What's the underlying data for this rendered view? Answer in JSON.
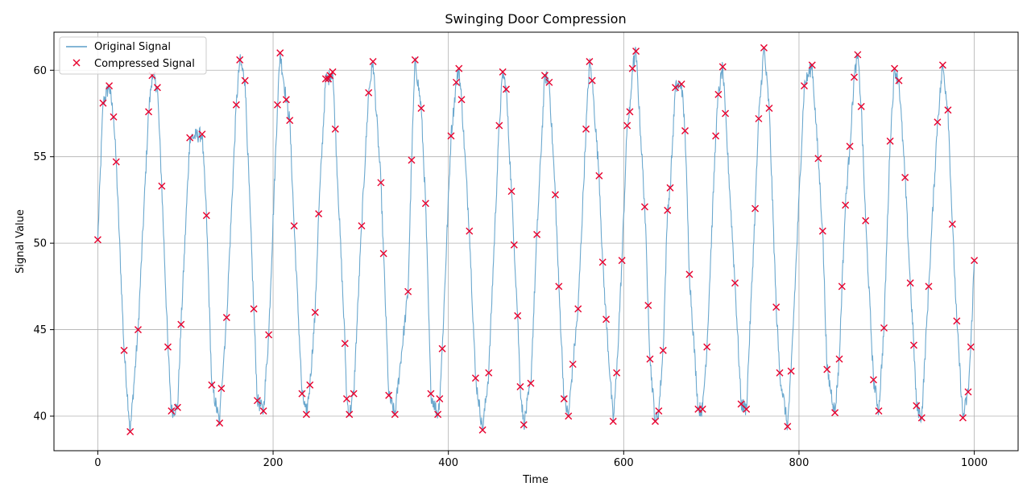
{
  "colors": {
    "original": "#5b9ec9",
    "compressed": "#e8002d",
    "grid": "#b0b0b0",
    "axis": "#000000"
  },
  "chart_data": {
    "type": "line",
    "title": "Swinging Door Compression",
    "xlabel": "Time",
    "ylabel": "Signal Value",
    "xlim": [
      -50,
      1050
    ],
    "ylim": [
      38,
      62.2
    ],
    "xticks": [
      0,
      200,
      400,
      600,
      800,
      1000
    ],
    "xtick_labels": [
      "0",
      "200",
      "400",
      "600",
      "800",
      "1000"
    ],
    "yticks": [
      40,
      45,
      50,
      55,
      60
    ],
    "ytick_labels": [
      "40",
      "45",
      "50",
      "55",
      "60"
    ],
    "grid": true,
    "legend_position": "upper-left",
    "series": [
      {
        "name": "Original Signal",
        "style": "line",
        "description_params": {
          "mean": 50,
          "amplitude": 10.2,
          "period": 50.5,
          "noise": 0.45
        }
      },
      {
        "name": "Compressed Signal",
        "style": "marker-x",
        "points": [
          [
            0,
            50.2
          ],
          [
            6,
            58.1
          ],
          [
            13,
            59.1
          ],
          [
            18,
            57.3
          ],
          [
            21,
            54.7
          ],
          [
            30,
            43.8
          ],
          [
            37,
            39.1
          ],
          [
            46,
            45.0
          ],
          [
            58,
            57.6
          ],
          [
            62,
            59.7
          ],
          [
            68,
            59.0
          ],
          [
            73,
            53.3
          ],
          [
            80,
            44.0
          ],
          [
            84,
            40.3
          ],
          [
            91,
            40.5
          ],
          [
            95,
            45.3
          ],
          [
            105,
            56.1
          ],
          [
            119,
            56.3
          ],
          [
            124,
            51.6
          ],
          [
            130,
            41.8
          ],
          [
            139,
            39.6
          ],
          [
            141,
            41.6
          ],
          [
            147,
            45.7
          ],
          [
            158,
            58.0
          ],
          [
            162,
            60.6
          ],
          [
            168,
            59.4
          ],
          [
            178,
            46.2
          ],
          [
            182,
            40.9
          ],
          [
            189,
            40.3
          ],
          [
            195,
            44.7
          ],
          [
            205,
            58.0
          ],
          [
            208,
            61.0
          ],
          [
            215,
            58.3
          ],
          [
            219,
            57.1
          ],
          [
            224,
            51.0
          ],
          [
            233,
            41.3
          ],
          [
            238,
            40.1
          ],
          [
            242,
            41.8
          ],
          [
            248,
            46.0
          ],
          [
            252,
            51.7
          ],
          [
            260,
            59.5
          ],
          [
            263,
            59.5
          ],
          [
            265,
            59.7
          ],
          [
            268,
            59.9
          ],
          [
            271,
            56.6
          ],
          [
            282,
            44.2
          ],
          [
            284,
            41.0
          ],
          [
            287,
            40.1
          ],
          [
            292,
            41.3
          ],
          [
            301,
            51.0
          ],
          [
            309,
            58.7
          ],
          [
            314,
            60.5
          ],
          [
            323,
            53.5
          ],
          [
            326,
            49.4
          ],
          [
            332,
            41.2
          ],
          [
            339,
            40.1
          ],
          [
            354,
            47.2
          ],
          [
            358,
            54.8
          ],
          [
            362,
            60.6
          ],
          [
            369,
            57.8
          ],
          [
            374,
            52.3
          ],
          [
            380,
            41.3
          ],
          [
            388,
            40.1
          ],
          [
            390,
            41.0
          ],
          [
            393,
            43.9
          ],
          [
            403,
            56.2
          ],
          [
            409,
            59.3
          ],
          [
            412,
            60.1
          ],
          [
            415,
            58.3
          ],
          [
            424,
            50.7
          ],
          [
            431,
            42.2
          ],
          [
            439,
            39.2
          ],
          [
            446,
            42.5
          ],
          [
            458,
            56.8
          ],
          [
            462,
            59.9
          ],
          [
            466,
            58.9
          ],
          [
            472,
            53.0
          ],
          [
            475,
            49.9
          ],
          [
            479,
            45.8
          ],
          [
            482,
            41.7
          ],
          [
            486,
            39.5
          ],
          [
            494,
            41.9
          ],
          [
            501,
            50.5
          ],
          [
            510,
            59.7
          ],
          [
            515,
            59.3
          ],
          [
            522,
            52.8
          ],
          [
            526,
            47.5
          ],
          [
            532,
            41.0
          ],
          [
            537,
            40.0
          ],
          [
            542,
            43.0
          ],
          [
            548,
            46.2
          ],
          [
            557,
            56.6
          ],
          [
            561,
            60.5
          ],
          [
            564,
            59.4
          ],
          [
            572,
            53.9
          ],
          [
            576,
            48.9
          ],
          [
            580,
            45.6
          ],
          [
            588,
            39.7
          ],
          [
            592,
            42.5
          ],
          [
            598,
            49.0
          ],
          [
            604,
            56.8
          ],
          [
            607,
            57.6
          ],
          [
            610,
            60.1
          ],
          [
            614,
            61.1
          ],
          [
            624,
            52.1
          ],
          [
            628,
            46.4
          ],
          [
            630,
            43.3
          ],
          [
            636,
            39.7
          ],
          [
            640,
            40.3
          ],
          [
            645,
            43.8
          ],
          [
            650,
            51.9
          ],
          [
            653,
            53.2
          ],
          [
            659,
            59.0
          ],
          [
            666,
            59.2
          ],
          [
            670,
            56.5
          ],
          [
            675,
            48.2
          ],
          [
            685,
            40.4
          ],
          [
            690,
            40.4
          ],
          [
            695,
            44.0
          ],
          [
            705,
            56.2
          ],
          [
            708,
            58.6
          ],
          [
            713,
            60.2
          ],
          [
            716,
            57.5
          ],
          [
            727,
            47.7
          ],
          [
            734,
            40.7
          ],
          [
            740,
            40.4
          ],
          [
            750,
            52.0
          ],
          [
            754,
            57.2
          ],
          [
            760,
            61.3
          ],
          [
            766,
            57.8
          ],
          [
            774,
            46.3
          ],
          [
            778,
            42.5
          ],
          [
            787,
            39.4
          ],
          [
            791,
            42.6
          ],
          [
            806,
            59.1
          ],
          [
            815,
            60.3
          ],
          [
            822,
            54.9
          ],
          [
            827,
            50.7
          ],
          [
            832,
            42.7
          ],
          [
            841,
            40.2
          ],
          [
            846,
            43.3
          ],
          [
            849,
            47.5
          ],
          [
            853,
            52.2
          ],
          [
            858,
            55.6
          ],
          [
            863,
            59.6
          ],
          [
            867,
            60.9
          ],
          [
            871,
            57.9
          ],
          [
            876,
            51.3
          ],
          [
            885,
            42.1
          ],
          [
            891,
            40.3
          ],
          [
            897,
            45.1
          ],
          [
            904,
            55.9
          ],
          [
            909,
            60.1
          ],
          [
            914,
            59.4
          ],
          [
            921,
            53.8
          ],
          [
            927,
            47.7
          ],
          [
            931,
            44.1
          ],
          [
            934,
            40.6
          ],
          [
            940,
            39.9
          ],
          [
            948,
            47.5
          ],
          [
            958,
            57.0
          ],
          [
            964,
            60.3
          ],
          [
            970,
            57.7
          ],
          [
            975,
            51.1
          ],
          [
            980,
            45.5
          ],
          [
            987,
            39.9
          ],
          [
            993,
            41.4
          ],
          [
            996,
            44.0
          ],
          [
            1000,
            49.0
          ]
        ]
      }
    ]
  }
}
